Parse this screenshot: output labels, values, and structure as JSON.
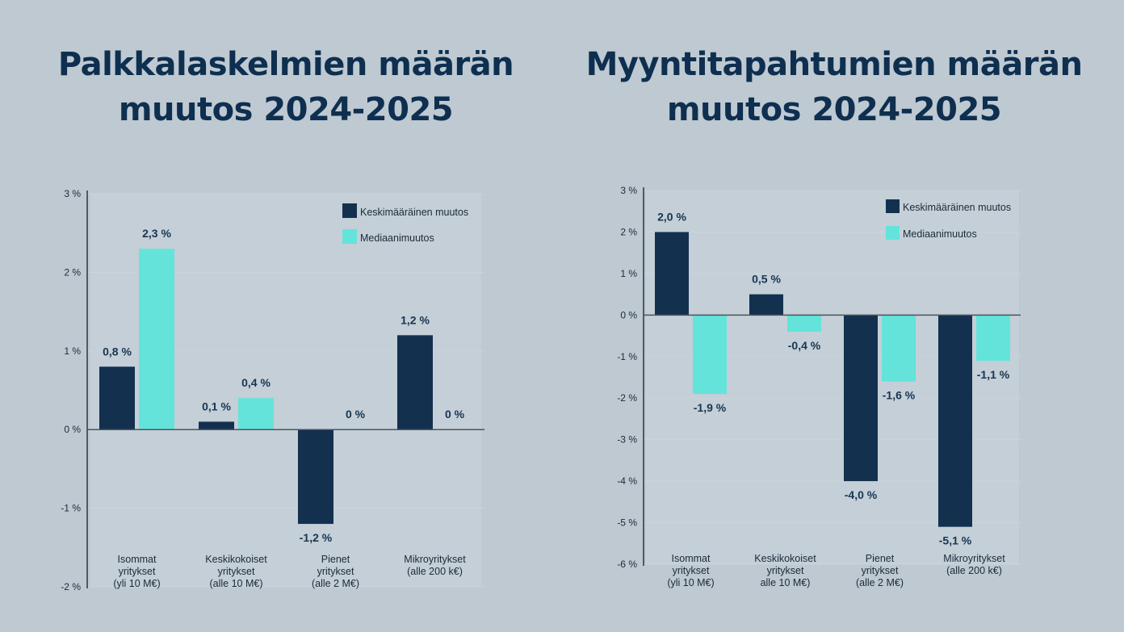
{
  "colors": {
    "mean": "#13304f",
    "median": "#64e3da",
    "axis": "#4a5560",
    "background": "#bec9d2"
  },
  "chart_data": [
    {
      "type": "bar",
      "title": "Palkkalaskelmien määrän muutos 2024-2025",
      "categories": [
        [
          "Isommat",
          "yritykset",
          "(yli 10 M€)"
        ],
        [
          "Keskikokoiset",
          "yritykset",
          "(alle 10 M€)"
        ],
        [
          "Pienet",
          "yritykset",
          "(alle 2 M€)"
        ],
        [
          "Mikroyritykset",
          "(alle 200 k€)"
        ]
      ],
      "series": [
        {
          "name": "Keskimääräinen muutos",
          "values": [
            0.8,
            0.1,
            -1.2,
            1.2
          ],
          "labels": [
            "0,8 %",
            "0,1 %",
            "-1,2 %",
            "1,2 %"
          ]
        },
        {
          "name": "Mediaanimuutos",
          "values": [
            2.3,
            0.4,
            0,
            0
          ],
          "labels": [
            "2,3 %",
            "0,4 %",
            "0 %",
            "0 %"
          ]
        }
      ],
      "yticks": [
        "3 %",
        "2 %",
        "1 %",
        "0 %",
        "-1 %",
        "-2 %"
      ],
      "ytick_values": [
        3,
        2,
        1,
        0,
        -1,
        -2
      ],
      "ylim": [
        -2,
        3
      ],
      "xlabel": "",
      "ylabel": "",
      "legend": "top-right"
    },
    {
      "type": "bar",
      "title": "Myyntitapahtumien määrän muutos 2024-2025",
      "categories": [
        [
          "Isommat",
          "yritykset",
          "(yli 10 M€)"
        ],
        [
          "Keskikokoiset",
          "yritykset",
          "alle 10 M€)"
        ],
        [
          "Pienet",
          "yritykset",
          "(alle 2 M€)"
        ],
        [
          "Mikroyritykset",
          "(alle 200 k€)"
        ]
      ],
      "series": [
        {
          "name": "Keskimääräinen muutos",
          "values": [
            2.0,
            0.5,
            -4.0,
            -5.1
          ],
          "labels": [
            "2,0 %",
            "0,5 %",
            "-4,0 %",
            "-5,1 %"
          ]
        },
        {
          "name": "Mediaanimuutos",
          "values": [
            -1.9,
            -0.4,
            -1.6,
            -1.1
          ],
          "labels": [
            "-1,9 %",
            "-0,4 %",
            "-1,6 %",
            "-1,1 %"
          ]
        }
      ],
      "yticks": [
        "3 %",
        "2 %",
        "1 %",
        "0 %",
        "-1 %",
        "-2 %",
        "-3 %",
        "-4 %",
        "-5 %",
        "-6 %"
      ],
      "ytick_values": [
        3,
        2,
        1,
        0,
        -1,
        -2,
        -3,
        -4,
        -5,
        -6
      ],
      "ylim": [
        -6,
        3
      ],
      "xlabel": "",
      "ylabel": "",
      "legend": "top-right"
    }
  ]
}
